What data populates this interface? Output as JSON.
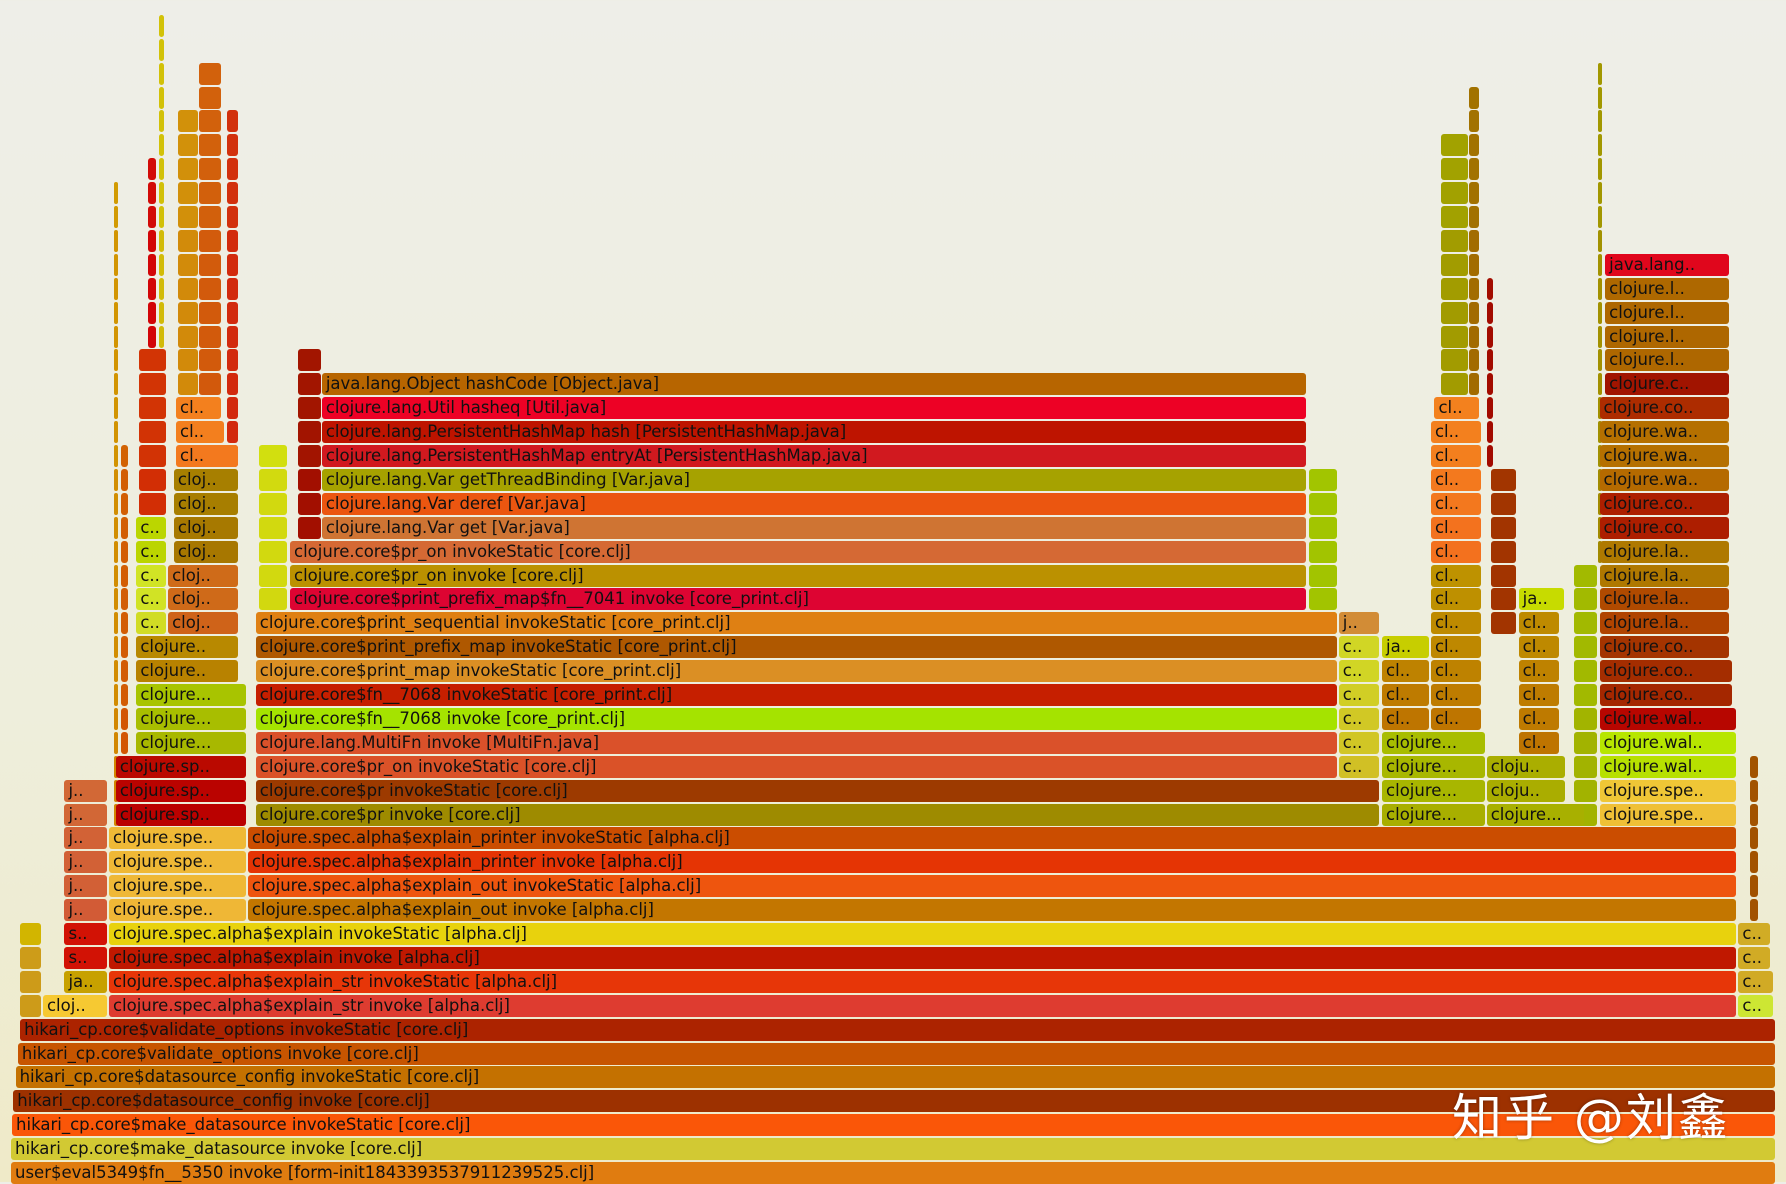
{
  "chart_data": {
    "type": "flamegraph",
    "x_unit": "percent of samples",
    "frame_fields": [
      "depth",
      "start_pct",
      "end_pct",
      "name"
    ],
    "frames": [
      [
        0,
        0,
        100,
        "user$eval5349$fn__5350 invoke [form-init1843393537911239525.clj]"
      ],
      [
        1,
        0,
        100,
        "hikari_cp.core$make_datasource invoke [core.clj]"
      ],
      [
        2,
        0.06,
        100,
        "hikari_cp.core$make_datasource invokeStatic [core.clj]"
      ],
      [
        3,
        0.13,
        100,
        "hikari_cp.core$datasource_config invoke [core.clj]"
      ],
      [
        4,
        0.26,
        100,
        "hikari_cp.core$datasource_config invokeStatic [core.clj]"
      ],
      [
        5,
        0.39,
        100,
        "hikari_cp.core$validate_options invoke [core.clj]"
      ],
      [
        6,
        0.52,
        100,
        "hikari_cp.core$validate_options invokeStatic [core.clj]"
      ],
      [
        7,
        1.81,
        5.48,
        "cloj.."
      ],
      [
        7,
        5.55,
        97.81,
        "clojure.spec.alpha$explain_str invoke [alpha.clj]"
      ],
      [
        7,
        97.87,
        99.87,
        "c.."
      ],
      [
        8,
        3.03,
        5.48,
        "ja.."
      ],
      [
        8,
        5.55,
        97.81,
        "clojure.spec.alpha$explain_str invokeStatic [alpha.clj]"
      ],
      [
        8,
        97.87,
        99.87,
        "c.."
      ],
      [
        9,
        3.03,
        5.48,
        "s.."
      ],
      [
        9,
        5.55,
        97.81,
        "clojure.spec.alpha$explain invoke [alpha.clj]"
      ],
      [
        9,
        97.87,
        99.74,
        "c.."
      ],
      [
        10,
        3.03,
        5.48,
        "s.."
      ],
      [
        10,
        5.55,
        97.81,
        "clojure.spec.alpha$explain invokeStatic [alpha.clj]"
      ],
      [
        10,
        97.87,
        99.74,
        "c.."
      ],
      [
        11,
        3.03,
        5.48,
        "j.."
      ],
      [
        11,
        5.55,
        13.35,
        "clojure.spe.."
      ],
      [
        11,
        13.42,
        97.81,
        "clojure.spec.alpha$explain_out invoke [alpha.clj]"
      ],
      [
        12,
        3.03,
        5.48,
        "j.."
      ],
      [
        12,
        5.55,
        13.35,
        "clojure.spe.."
      ],
      [
        12,
        13.42,
        97.81,
        "clojure.spec.alpha$explain_out invokeStatic [alpha.clj]"
      ],
      [
        13,
        3.03,
        5.48,
        "j.."
      ],
      [
        13,
        5.55,
        13.35,
        "clojure.spe.."
      ],
      [
        13,
        13.42,
        97.81,
        "clojure.spec.alpha$explain_printer invoke [alpha.clj]"
      ],
      [
        14,
        3.03,
        5.48,
        "j.."
      ],
      [
        14,
        5.55,
        13.35,
        "clojure.spe.."
      ],
      [
        14,
        13.42,
        97.81,
        "clojure.spec.alpha$explain_printer invokeStatic [alpha.clj]"
      ],
      [
        15,
        3.03,
        5.48,
        "j.."
      ],
      [
        15,
        5.94,
        13.35,
        "clojure.sp.."
      ],
      [
        15,
        13.87,
        77.55,
        "clojure.core$pr invoke [core.clj]"
      ],
      [
        15,
        77.68,
        83.55,
        "clojure..."
      ],
      [
        15,
        83.61,
        89.16,
        "clojure..."
      ],
      [
        15,
        90.0,
        97.81,
        "clojure.spe.."
      ],
      [
        16,
        3.03,
        5.48,
        "j.."
      ],
      [
        16,
        5.94,
        13.35,
        "clojure.sp.."
      ],
      [
        16,
        13.87,
        77.55,
        "clojure.core$pr invokeStatic [core.clj]"
      ],
      [
        16,
        77.68,
        83.55,
        "clojure..."
      ],
      [
        16,
        83.61,
        88.13,
        "cloju.."
      ],
      [
        16,
        90.0,
        97.81,
        "clojure.spe.."
      ],
      [
        17,
        5.94,
        13.35,
        "clojure.sp.."
      ],
      [
        17,
        13.87,
        75.16,
        "clojure.core$pr_on invokeStatic [core.clj]"
      ],
      [
        17,
        75.23,
        77.55,
        "c.."
      ],
      [
        17,
        77.68,
        83.55,
        "clojure..."
      ],
      [
        17,
        83.61,
        88.13,
        "cloju.."
      ],
      [
        17,
        90.0,
        97.81,
        "clojure.wal.."
      ],
      [
        18,
        7.1,
        13.35,
        "clojure..."
      ],
      [
        18,
        13.87,
        75.16,
        "clojure.lang.MultiFn invoke [MultiFn.java]"
      ],
      [
        18,
        75.23,
        77.55,
        "c.."
      ],
      [
        18,
        77.68,
        83.55,
        "clojure..."
      ],
      [
        18,
        85.42,
        87.74,
        "cl.."
      ],
      [
        18,
        90.0,
        97.81,
        "clojure.wal.."
      ],
      [
        19,
        7.1,
        13.35,
        "clojure..."
      ],
      [
        19,
        13.87,
        75.16,
        "clojure.core$fn__7068 invoke [core_print.clj]"
      ],
      [
        19,
        75.23,
        77.55,
        "c.."
      ],
      [
        19,
        77.68,
        80.39,
        "cl.."
      ],
      [
        19,
        80.45,
        83.35,
        "cl.."
      ],
      [
        19,
        85.42,
        87.74,
        "cl.."
      ],
      [
        19,
        90.0,
        97.81,
        "clojure.wal.."
      ],
      [
        20,
        7.1,
        13.35,
        "clojure..."
      ],
      [
        20,
        13.87,
        75.16,
        "clojure.core$fn__7068 invokeStatic [core_print.clj]"
      ],
      [
        20,
        75.23,
        77.55,
        "c.."
      ],
      [
        20,
        77.68,
        80.39,
        "cl.."
      ],
      [
        20,
        80.45,
        83.35,
        "cl.."
      ],
      [
        20,
        85.42,
        87.74,
        "cl.."
      ],
      [
        20,
        90.0,
        97.55,
        "clojure.co.."
      ],
      [
        21,
        7.1,
        12.9,
        "clojure.."
      ],
      [
        21,
        13.87,
        75.16,
        "clojure.core$print_map invokeStatic [core_print.clj]"
      ],
      [
        21,
        75.23,
        77.55,
        "c.."
      ],
      [
        21,
        77.68,
        80.39,
        "cl.."
      ],
      [
        21,
        80.45,
        83.35,
        "cl.."
      ],
      [
        21,
        85.42,
        87.74,
        "cl.."
      ],
      [
        21,
        90.0,
        97.55,
        "clojure.co.."
      ],
      [
        22,
        7.1,
        12.9,
        "clojure.."
      ],
      [
        22,
        13.87,
        75.16,
        "clojure.core$print_prefix_map invokeStatic [core_print.clj]"
      ],
      [
        22,
        75.23,
        77.55,
        "c.."
      ],
      [
        22,
        77.68,
        80.39,
        "ja.."
      ],
      [
        22,
        80.45,
        83.35,
        "cl.."
      ],
      [
        22,
        85.42,
        87.74,
        "cl.."
      ],
      [
        22,
        90.0,
        97.42,
        "clojure.co.."
      ],
      [
        23,
        7.1,
        8.84,
        "c.."
      ],
      [
        23,
        8.9,
        12.9,
        "cloj.."
      ],
      [
        23,
        13.87,
        75.16,
        "clojure.core$print_sequential invokeStatic [core_print.clj]"
      ],
      [
        23,
        75.23,
        77.55,
        "j.."
      ],
      [
        23,
        80.45,
        83.35,
        "cl.."
      ],
      [
        23,
        85.42,
        87.74,
        "cl.."
      ],
      [
        23,
        90.0,
        97.42,
        "clojure.la.."
      ],
      [
        24,
        7.1,
        8.84,
        "c.."
      ],
      [
        24,
        8.9,
        12.9,
        "cloj.."
      ],
      [
        24,
        15.81,
        73.42,
        "clojure.core$print_prefix_map$fn__7041 invoke [core_print.clj]"
      ],
      [
        24,
        80.45,
        83.35,
        "cl.."
      ],
      [
        24,
        85.42,
        88.06,
        "ja.."
      ],
      [
        24,
        90.0,
        97.42,
        "clojure.la.."
      ],
      [
        25,
        7.1,
        8.84,
        "c.."
      ],
      [
        25,
        8.9,
        12.9,
        "cloj.."
      ],
      [
        25,
        15.81,
        73.42,
        "clojure.core$pr_on invoke [core.clj]"
      ],
      [
        25,
        80.45,
        83.35,
        "cl.."
      ],
      [
        25,
        90.0,
        97.42,
        "clojure.la.."
      ],
      [
        26,
        7.1,
        8.84,
        "c.."
      ],
      [
        26,
        9.23,
        12.9,
        "cloj.."
      ],
      [
        26,
        15.81,
        73.42,
        "clojure.core$pr_on invokeStatic [core.clj]"
      ],
      [
        26,
        80.45,
        83.35,
        "cl.."
      ],
      [
        26,
        90.0,
        97.42,
        "clojure.la.."
      ],
      [
        27,
        7.1,
        8.84,
        "c.."
      ],
      [
        27,
        9.23,
        12.9,
        "cloj.."
      ],
      [
        27,
        17.61,
        73.42,
        "clojure.lang.Var get [Var.java]"
      ],
      [
        27,
        80.45,
        83.35,
        "cl.."
      ],
      [
        27,
        90.0,
        97.42,
        "clojure.co.."
      ],
      [
        28,
        9.23,
        12.9,
        "cloj.."
      ],
      [
        28,
        17.61,
        73.42,
        "clojure.lang.Var deref [Var.java]"
      ],
      [
        28,
        80.45,
        83.35,
        "cl.."
      ],
      [
        28,
        90.0,
        97.42,
        "clojure.co.."
      ],
      [
        29,
        9.23,
        12.9,
        "cloj.."
      ],
      [
        29,
        17.61,
        73.42,
        "clojure.lang.Var getThreadBinding [Var.java]"
      ],
      [
        29,
        80.45,
        83.35,
        "cl.."
      ],
      [
        29,
        90.0,
        97.42,
        "clojure.wa.."
      ],
      [
        30,
        9.35,
        12.9,
        "cl.."
      ],
      [
        30,
        17.61,
        73.42,
        "clojure.lang.PersistentHashMap entryAt [PersistentHashMap.java]"
      ],
      [
        30,
        80.45,
        83.35,
        "cl.."
      ],
      [
        30,
        90.0,
        97.42,
        "clojure.wa.."
      ],
      [
        31,
        9.35,
        12.13,
        "cl.."
      ],
      [
        31,
        17.61,
        73.42,
        "clojure.lang.PersistentHashMap hash [PersistentHashMap.java]"
      ],
      [
        31,
        80.45,
        83.35,
        "cl.."
      ],
      [
        31,
        90.0,
        97.42,
        "clojure.wa.."
      ],
      [
        32,
        9.35,
        11.94,
        "cl.."
      ],
      [
        32,
        17.61,
        73.42,
        "clojure.lang.Util hasheq [Util.java]"
      ],
      [
        32,
        80.65,
        83.23,
        "cl.."
      ],
      [
        32,
        90.0,
        97.42,
        "clojure.co.."
      ],
      [
        33,
        17.61,
        73.42,
        "java.lang.Object hashCode [Object.java]"
      ],
      [
        33,
        90.32,
        97.42,
        "clojure.c.."
      ],
      [
        34,
        90.32,
        97.42,
        "clojure.l.."
      ],
      [
        35,
        90.32,
        97.42,
        "clojure.l.."
      ],
      [
        36,
        90.32,
        97.42,
        "clojure.l.."
      ],
      [
        37,
        90.32,
        97.42,
        "clojure.l.."
      ],
      [
        38,
        90.32,
        97.42,
        "java.lang.."
      ]
    ],
    "unlabeled_stack_fields": [
      "depth_from",
      "depth_to",
      "start_pct",
      "end_pct"
    ],
    "unlabeled_stacks": [
      [
        7,
        10,
        0.52,
        1.74
      ],
      [
        15,
        41,
        5.81,
        6.06
      ],
      [
        16,
        30,
        6.26,
        6.71
      ],
      [
        28,
        34,
        7.23,
        8.84
      ],
      [
        35,
        42,
        7.74,
        8.3
      ],
      [
        35,
        48,
        8.39,
        8.71
      ],
      [
        33,
        44,
        9.48,
        10.65
      ],
      [
        33,
        46,
        10.65,
        11.94
      ],
      [
        30,
        44,
        12.26,
        12.9
      ],
      [
        24,
        30,
        14.06,
        15.68
      ],
      [
        27,
        34,
        16.26,
        17.61
      ],
      [
        23,
        29,
        73.55,
        75.16
      ],
      [
        33,
        43,
        81.0,
        82.58
      ],
      [
        33,
        45,
        82.58,
        83.23
      ],
      [
        23,
        29,
        83.87,
        85.35
      ],
      [
        30,
        37,
        83.61,
        84.0
      ],
      [
        15,
        25,
        88.58,
        89.94
      ],
      [
        26,
        46,
        89.94,
        90.19
      ],
      [
        11,
        17,
        98.52,
        99.03
      ]
    ]
  },
  "watermark": "知乎 @刘鑫"
}
